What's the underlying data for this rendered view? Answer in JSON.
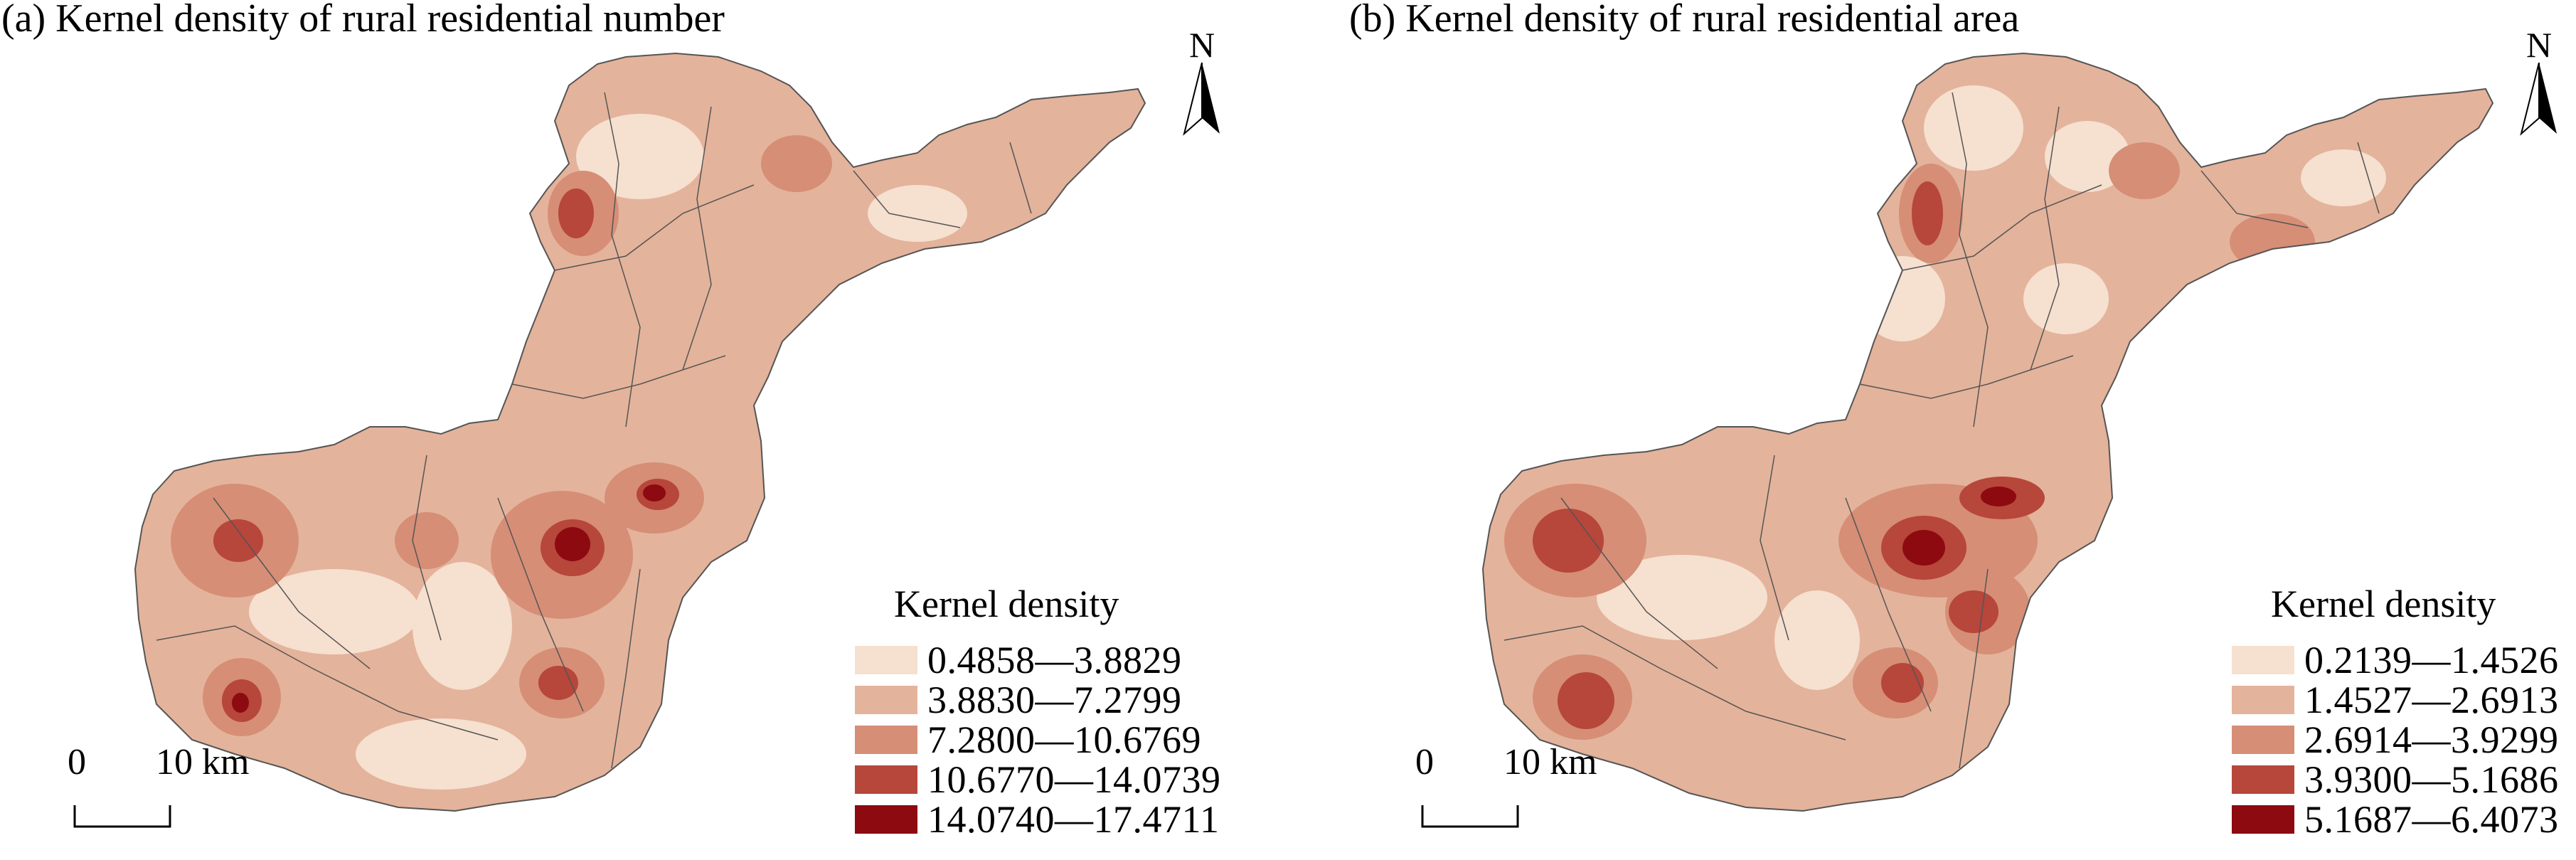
{
  "panels": [
    {
      "title": "(a) Kernel density of rural residential number",
      "north_label": "N",
      "legend": {
        "title": "Kernel density",
        "classes": [
          {
            "label": "0.4858—3.8829",
            "color": "#f6e0d0"
          },
          {
            "label": "3.8830—7.2799",
            "color": "#e4b39b"
          },
          {
            "label": "7.2800—10.6769",
            "color": "#d68e76"
          },
          {
            "label": "10.6770—14.0739",
            "color": "#b7463b"
          },
          {
            "label": "14.0740—17.4711",
            "color": "#8c0a10"
          }
        ]
      },
      "scale": {
        "start": "0",
        "end": "10 km"
      }
    },
    {
      "title": "(b) Kernel density of rural residential area",
      "north_label": "N",
      "legend": {
        "title": "Kernel density",
        "classes": [
          {
            "label": "0.2139—1.4526",
            "color": "#f6e0d0"
          },
          {
            "label": "1.4527—2.6913",
            "color": "#e4b39b"
          },
          {
            "label": "2.6914—3.9299",
            "color": "#d68e76"
          },
          {
            "label": "3.9300—5.1686",
            "color": "#b7463b"
          },
          {
            "label": "5.1687—6.4073",
            "color": "#8c0a10"
          }
        ]
      },
      "scale": {
        "start": "0",
        "end": "10 km"
      }
    }
  ]
}
